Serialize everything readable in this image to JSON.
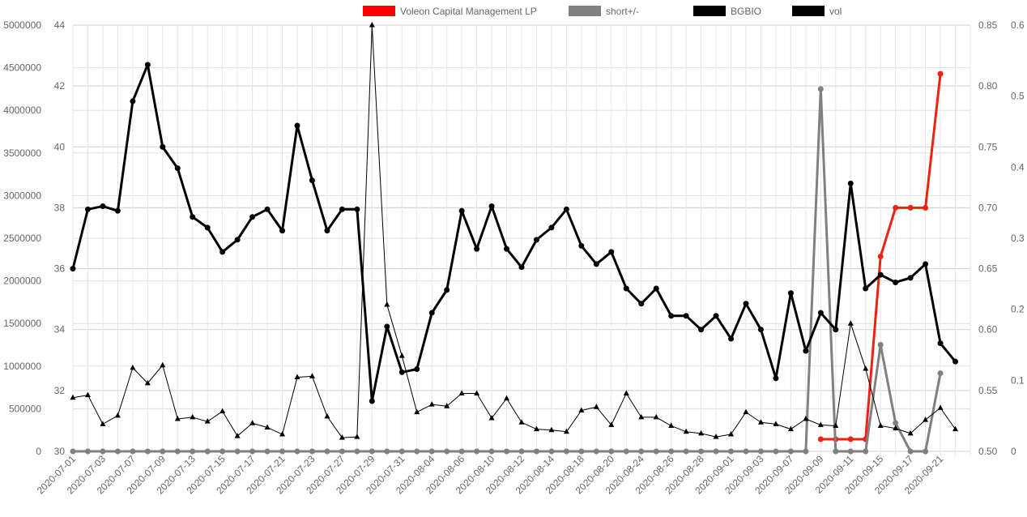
{
  "chart_data": {
    "type": "line",
    "legend": {
      "position": "top",
      "items": [
        {
          "label": "Voleon Capital Management LP",
          "color": "#ff0000"
        },
        {
          "label": "short+/-",
          "color": "#808080"
        },
        {
          "label": "BGBIO",
          "color": "#000000"
        },
        {
          "label": "vol",
          "color": "#000000"
        }
      ]
    },
    "categories": [
      "2020-07-01",
      "2020-07-02",
      "2020-07-03",
      "2020-07-06",
      "2020-07-07",
      "2020-07-08",
      "2020-07-09",
      "2020-07-10",
      "2020-07-13",
      "2020-07-14",
      "2020-07-15",
      "2020-07-16",
      "2020-07-17",
      "2020-07-20",
      "2020-07-21",
      "2020-07-22",
      "2020-07-23",
      "2020-07-24",
      "2020-07-27",
      "2020-07-28",
      "2020-07-29",
      "2020-07-30",
      "2020-07-31",
      "2020-08-03",
      "2020-08-04",
      "2020-08-05",
      "2020-08-06",
      "2020-08-07",
      "2020-08-10",
      "2020-08-11",
      "2020-08-12",
      "2020-08-13",
      "2020-08-14",
      "2020-08-17",
      "2020-08-18",
      "2020-08-19",
      "2020-08-20",
      "2020-08-21",
      "2020-08-24",
      "2020-08-25",
      "2020-08-26",
      "2020-08-27",
      "2020-08-28",
      "2020-08-31",
      "2020-09-01",
      "2020-09-02",
      "2020-09-03",
      "2020-09-04",
      "2020-09-07",
      "2020-09-08",
      "2020-09-09",
      "2020-09-10",
      "2020-09-11",
      "2020-09-14",
      "2020-09-15",
      "2020-09-16",
      "2020-09-17",
      "2020-09-18",
      "2020-09-21",
      "2020-09-22",
      "2020-09-23"
    ],
    "tick_labels": [
      "2020-07-01",
      "2020-07-03",
      "2020-07-07",
      "2020-07-09",
      "2020-07-13",
      "2020-07-15",
      "2020-07-17",
      "2020-07-21",
      "2020-07-23",
      "2020-07-27",
      "2020-07-29",
      "2020-07-31",
      "2020-08-04",
      "2020-08-06",
      "2020-08-10",
      "2020-08-12",
      "2020-08-14",
      "2020-08-18",
      "2020-08-20",
      "2020-08-24",
      "2020-08-26",
      "2020-08-28",
      "2020-09-01",
      "2020-09-03",
      "2020-09-07",
      "2020-09-09",
      "2020-09-11",
      "2020-09-15",
      "2020-09-17",
      "2020-09-21"
    ],
    "axes": {
      "y_vol": {
        "side": "left",
        "min": 0,
        "max": 5000000,
        "ticks": [
          0,
          500000,
          1000000,
          1500000,
          2000000,
          2500000,
          3000000,
          3500000,
          4000000,
          4500000,
          5000000
        ]
      },
      "y_price": {
        "side": "left",
        "min": 30,
        "max": 44,
        "ticks": [
          30,
          32,
          34,
          36,
          38,
          40,
          42,
          44
        ]
      },
      "y_pos": {
        "side": "right",
        "min": 0.5,
        "max": 0.85,
        "ticks": [
          "0.50",
          "0.55",
          "0.60",
          "0.65",
          "0.70",
          "0.75",
          "0.80",
          "0.85"
        ]
      },
      "y_short": {
        "side": "right",
        "min": 0,
        "max": 0.6,
        "ticks": [
          "0",
          "0.1",
          "0.2",
          "0.3",
          "0.4",
          "0.5",
          "0.6"
        ]
      }
    },
    "grid": true,
    "series": [
      {
        "name": "Voleon Capital Management LP",
        "axis": "y_pos",
        "color": "#ee2211",
        "width": 3,
        "marker": "circle",
        "values": [
          null,
          null,
          null,
          null,
          null,
          null,
          null,
          null,
          null,
          null,
          null,
          null,
          null,
          null,
          null,
          null,
          null,
          null,
          null,
          null,
          null,
          null,
          null,
          null,
          null,
          null,
          null,
          null,
          null,
          null,
          null,
          null,
          null,
          null,
          null,
          null,
          null,
          null,
          null,
          null,
          null,
          null,
          null,
          null,
          null,
          null,
          null,
          null,
          null,
          null,
          0.51,
          0.51,
          0.51,
          0.51,
          0.66,
          0.7,
          0.7,
          0.7,
          0.81,
          null,
          null
        ]
      },
      {
        "name": "short+/-",
        "axis": "y_short",
        "color": "#808080",
        "width": 3,
        "marker": "circle",
        "values": [
          0,
          0,
          0,
          0,
          0,
          0,
          0,
          0,
          0,
          0,
          0,
          0,
          0,
          0,
          0,
          0,
          0,
          0,
          0,
          0,
          0,
          0,
          0,
          0,
          0,
          0,
          0,
          0,
          0,
          0,
          0,
          0,
          0,
          0,
          0,
          0,
          0,
          0,
          0,
          0,
          0,
          0,
          0,
          0,
          0,
          0,
          0,
          0,
          0,
          0,
          0.51,
          0,
          0,
          0,
          0.15,
          0.04,
          0,
          0,
          0.11,
          null,
          null
        ]
      },
      {
        "name": "BGBIO",
        "axis": "y_price",
        "color": "#000000",
        "width": 3,
        "marker": "circle",
        "values": [
          36,
          37.95,
          38.05,
          37.9,
          41.5,
          42.7,
          40,
          39.3,
          37.7,
          37.35,
          36.55,
          36.95,
          37.7,
          37.95,
          37.25,
          40.7,
          38.9,
          37.25,
          37.95,
          37.95,
          31.65,
          34.1,
          32.6,
          32.7,
          34.55,
          35.3,
          37.9,
          36.65,
          38.05,
          36.65,
          36.05,
          36.95,
          37.35,
          37.95,
          36.75,
          36.15,
          36.55,
          35.35,
          34.85,
          35.35,
          34.45,
          34.45,
          34,
          34.45,
          33.7,
          34.85,
          34,
          32.4,
          35.2,
          33.3,
          34.55,
          34,
          38.8,
          35.35,
          35.8,
          35.55,
          35.7,
          36.15,
          33.55,
          32.95,
          null
        ]
      },
      {
        "name": "vol",
        "axis": "y_vol",
        "color": "#000000",
        "width": 1,
        "marker": "triangle",
        "values": [
          630000,
          660000,
          320000,
          420000,
          980000,
          800000,
          1010000,
          380000,
          400000,
          350000,
          470000,
          180000,
          330000,
          280000,
          200000,
          870000,
          880000,
          410000,
          160000,
          170000,
          5000000,
          1720000,
          1120000,
          460000,
          550000,
          530000,
          680000,
          680000,
          390000,
          620000,
          340000,
          260000,
          250000,
          230000,
          480000,
          520000,
          310000,
          680000,
          400000,
          400000,
          300000,
          230000,
          210000,
          170000,
          200000,
          460000,
          340000,
          320000,
          260000,
          380000,
          310000,
          300000,
          1500000,
          970000,
          300000,
          270000,
          210000,
          370000,
          510000,
          260000,
          null
        ]
      }
    ]
  }
}
